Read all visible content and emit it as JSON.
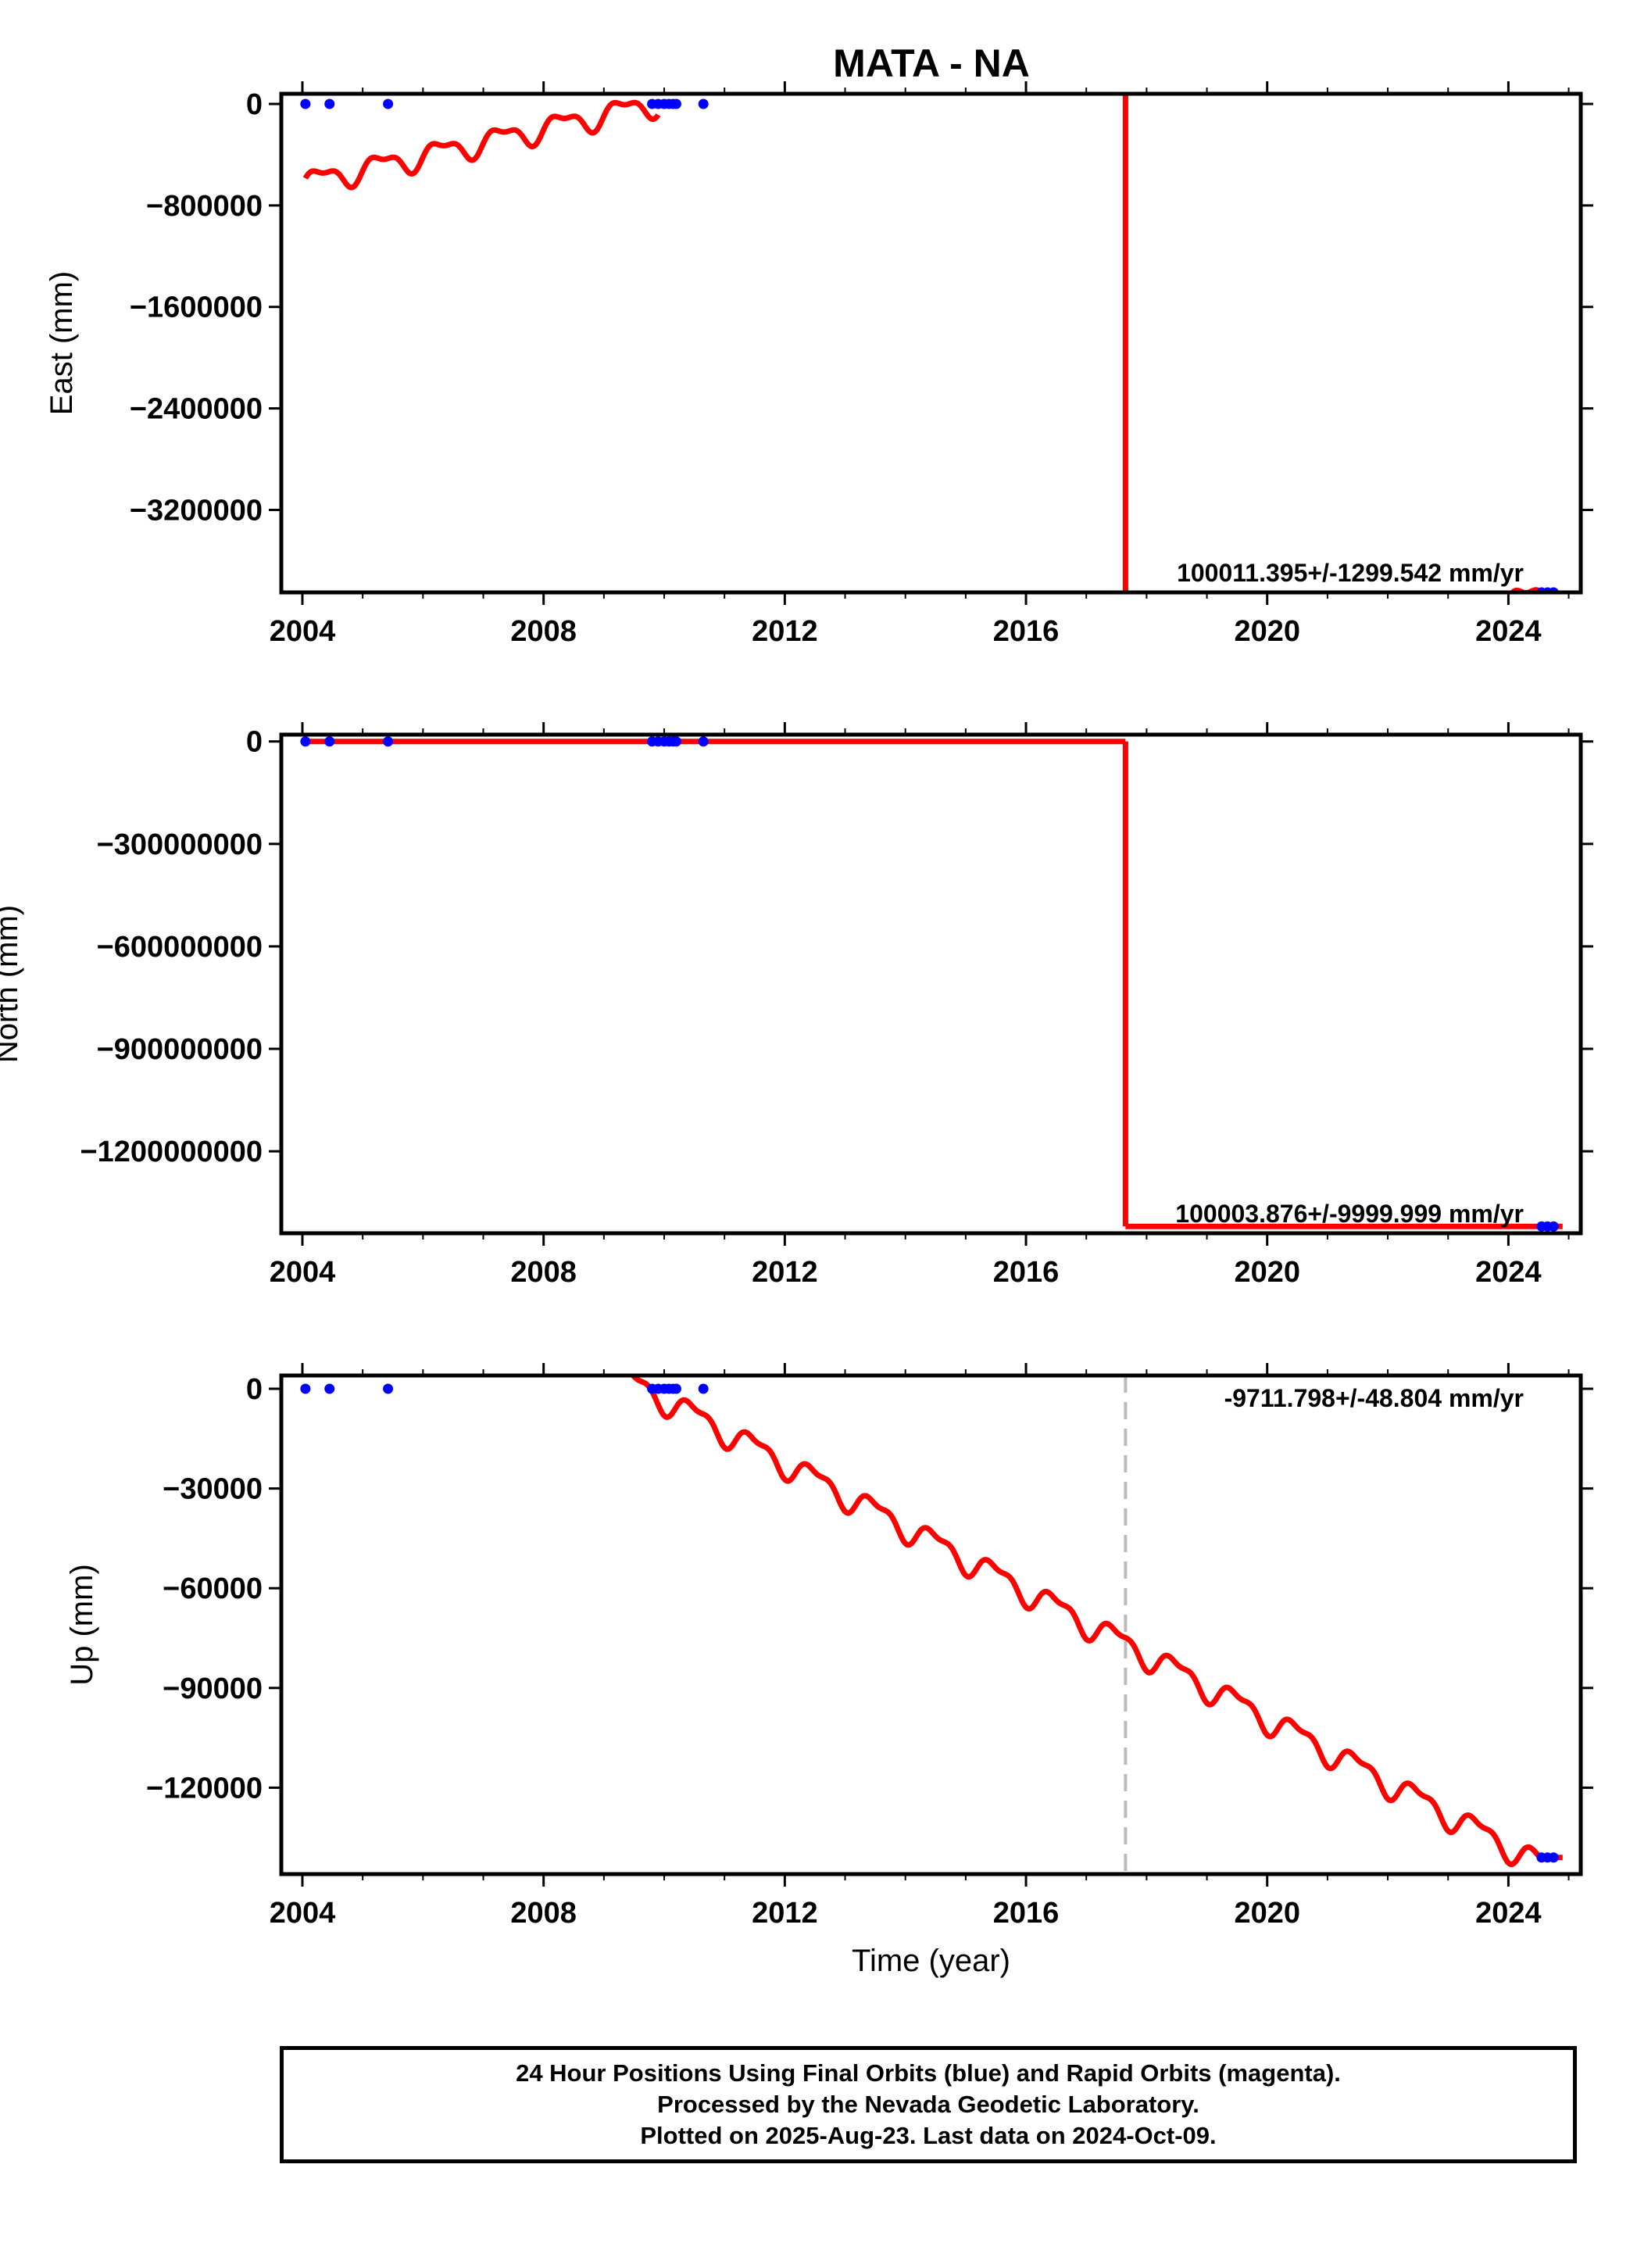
{
  "title": "MATA - NA",
  "footer": {
    "line1": "24 Hour Positions Using Final Orbits (blue) and Rapid Orbits (magenta).",
    "line2": "Processed by the Nevada Geodetic Laboratory.",
    "line3": "Plotted on 2025-Aug-23. Last data on 2024-Oct-09."
  },
  "colors": {
    "final_orbits": "#0000ff",
    "rapid_orbits": "#ff00ff",
    "model": "#ff0000",
    "break": "#bbbbbb"
  },
  "chart_data": [
    {
      "type": "scatter",
      "ylabel": "East (mm)",
      "xlabel": "",
      "xlim": [
        2003.65,
        2025.2
      ],
      "ylim": [
        -3850000,
        80000
      ],
      "x_ticks": [
        2004,
        2008,
        2012,
        2016,
        2020,
        2024
      ],
      "x_tick_labels": [
        "2004",
        "2008",
        "2012",
        "2016",
        "2020",
        "2024"
      ],
      "y_ticks": [
        0,
        -800000,
        -1600000,
        -2400000,
        -3200000
      ],
      "y_tick_labels": [
        "0",
        "−800000",
        "−1600000",
        "−2400000",
        "−3200000"
      ],
      "annotation": "100011.395+/-1299.542 mm/yr",
      "grid": false,
      "series": [
        {
          "color": "#0000ff",
          "points": [
            [
              2004.05,
              0
            ],
            [
              2004.45,
              0
            ],
            [
              2005.42,
              0
            ],
            [
              2009.8,
              0
            ],
            [
              2009.9,
              0
            ],
            [
              2010.0,
              0
            ],
            [
              2010.08,
              0
            ],
            [
              2010.15,
              0
            ],
            [
              2010.2,
              0
            ],
            [
              2010.65,
              0
            ],
            [
              2024.55,
              -3850000
            ],
            [
              2024.65,
              -3850000
            ],
            [
              2024.75,
              -3850000
            ]
          ]
        }
      ],
      "model": {
        "color": "#ff0000",
        "segments": [
          {
            "x": [
              2004.05,
              2009.9
            ],
            "y": [
              -620000,
              10000
            ],
            "seasonal_amp": 85000
          },
          {
            "x": [
              2017.65,
              2017.65
            ],
            "y": [
              80000,
              -3850000
            ],
            "seasonal_amp": 0
          },
          {
            "x": [
              2022.0,
              2024.9
            ],
            "y": [
              -4250000,
              -3820000
            ],
            "seasonal_amp": 110000
          }
        ]
      },
      "break_lines": []
    },
    {
      "type": "scatter",
      "ylabel": "North (mm)",
      "xlabel": "",
      "xlim": [
        2003.65,
        2025.2
      ],
      "ylim": [
        -1440000000,
        20000000
      ],
      "x_ticks": [
        2004,
        2008,
        2012,
        2016,
        2020,
        2024
      ],
      "x_tick_labels": [
        "2004",
        "2008",
        "2012",
        "2016",
        "2020",
        "2024"
      ],
      "y_ticks": [
        0,
        -300000000,
        -600000000,
        -900000000,
        -1200000000
      ],
      "y_tick_labels": [
        "0",
        "−300000000",
        "−600000000",
        "−900000000",
        "−1200000000"
      ],
      "annotation": "100003.876+/-9999.999 mm/yr",
      "grid": false,
      "series": [
        {
          "color": "#0000ff",
          "points": [
            [
              2004.05,
              0
            ],
            [
              2004.45,
              0
            ],
            [
              2005.42,
              0
            ],
            [
              2009.8,
              0
            ],
            [
              2009.9,
              0
            ],
            [
              2010.0,
              0
            ],
            [
              2010.08,
              0
            ],
            [
              2010.15,
              0
            ],
            [
              2010.2,
              0
            ],
            [
              2010.65,
              0
            ],
            [
              2024.55,
              -1420000000
            ],
            [
              2024.65,
              -1420000000
            ],
            [
              2024.75,
              -1420000000
            ]
          ]
        }
      ],
      "model": {
        "color": "#ff0000",
        "segments": [
          {
            "x": [
              2004.05,
              2017.65
            ],
            "y": [
              0,
              0
            ],
            "seasonal_amp": 0
          },
          {
            "x": [
              2017.65,
              2017.65
            ],
            "y": [
              0,
              -1420000000
            ],
            "seasonal_amp": 0
          },
          {
            "x": [
              2017.65,
              2024.9
            ],
            "y": [
              -1420000000,
              -1420000000
            ],
            "seasonal_amp": 0
          }
        ]
      },
      "break_lines": []
    },
    {
      "type": "scatter",
      "ylabel": "Up (mm)",
      "xlabel": "Time (year)",
      "xlim": [
        2003.65,
        2025.2
      ],
      "ylim": [
        -146000,
        4000
      ],
      "x_ticks": [
        2004,
        2008,
        2012,
        2016,
        2020,
        2024
      ],
      "x_tick_labels": [
        "2004",
        "2008",
        "2012",
        "2016",
        "2020",
        "2024"
      ],
      "y_ticks": [
        0,
        -30000,
        -60000,
        -90000,
        -120000
      ],
      "y_tick_labels": [
        "0",
        "−30000",
        "−60000",
        "−90000",
        "−120000"
      ],
      "annotation": "-9711.798+/-48.804 mm/yr",
      "grid": false,
      "series": [
        {
          "color": "#0000ff",
          "points": [
            [
              2004.05,
              0
            ],
            [
              2004.45,
              0
            ],
            [
              2005.42,
              0
            ],
            [
              2009.8,
              0
            ],
            [
              2009.9,
              0
            ],
            [
              2010.0,
              0
            ],
            [
              2010.08,
              0
            ],
            [
              2010.15,
              0
            ],
            [
              2010.2,
              0
            ],
            [
              2010.65,
              0
            ],
            [
              2024.55,
              -141000
            ],
            [
              2024.65,
              -141000
            ],
            [
              2024.75,
              -141000
            ]
          ]
        }
      ],
      "model": {
        "color": "#ff0000",
        "segments": [
          {
            "x": [
              2009.25,
              2024.55
            ],
            "y": [
              4000,
              -143000
            ],
            "seasonal_amp": 3500
          },
          {
            "x": [
              2024.55,
              2024.9
            ],
            "y": [
              -141000,
              -141000
            ],
            "seasonal_amp": 0
          }
        ]
      },
      "break_lines": [
        2017.65
      ]
    }
  ]
}
